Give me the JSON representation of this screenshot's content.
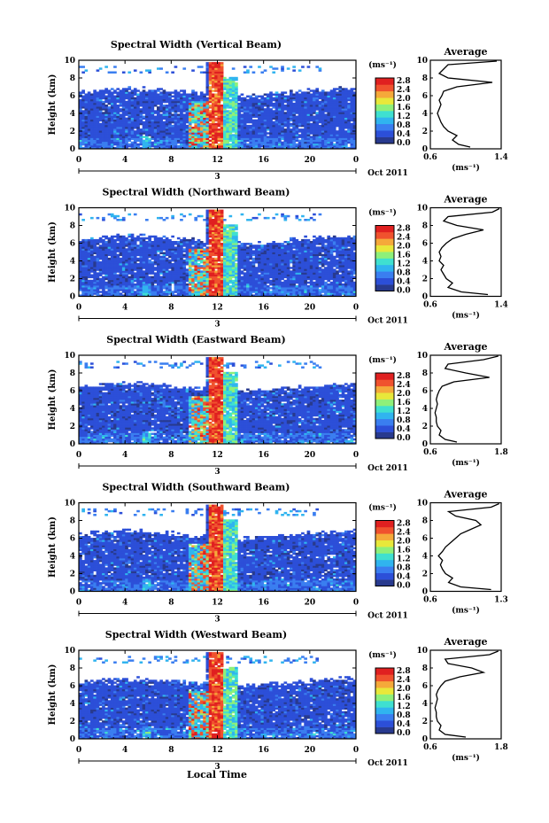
{
  "common": {
    "ylabel": "Height (km)",
    "xlabel": "Local Time",
    "date_label": "Oct 2011",
    "day_marker": "3",
    "unit_label": "(ms⁻¹)",
    "avg_title": "Average",
    "avg_unit": "(ms⁻¹)",
    "x_ticks": [
      "0",
      "4",
      "8",
      "12",
      "16",
      "20",
      "0"
    ],
    "y_ticks": [
      "0",
      "2",
      "4",
      "6",
      "8",
      "10"
    ],
    "colorbar_ticks": [
      "0.0",
      "0.4",
      "0.8",
      "1.2",
      "1.6",
      "2.0",
      "2.4",
      "2.8"
    ],
    "colorbar_colors": [
      "#283a8e",
      "#2c4fd8",
      "#3a7ef0",
      "#30b4ef",
      "#3fe0d0",
      "#8ef07a",
      "#e8e83a",
      "#f5a93a",
      "#f0522e",
      "#e02020"
    ]
  },
  "chart_data": [
    {
      "type": "heatmap",
      "title": "Spectral Width (Vertical Beam)",
      "x_range": [
        0,
        24
      ],
      "y_range": [
        0,
        10
      ],
      "color_range": [
        0.0,
        3.0
      ],
      "avg_ticks": [
        "0.6",
        "1.4"
      ],
      "avg_range": [
        0.6,
        1.4
      ],
      "avg_profile": [
        [
          1.05,
          0.2
        ],
        [
          0.92,
          0.5
        ],
        [
          0.85,
          1.0
        ],
        [
          0.9,
          1.5
        ],
        [
          0.8,
          2.0
        ],
        [
          0.75,
          2.5
        ],
        [
          0.72,
          3.0
        ],
        [
          0.7,
          3.5
        ],
        [
          0.68,
          4.0
        ],
        [
          0.7,
          4.5
        ],
        [
          0.72,
          5.0
        ],
        [
          0.7,
          5.5
        ],
        [
          0.73,
          6.0
        ],
        [
          0.75,
          6.5
        ],
        [
          0.9,
          7.0
        ],
        [
          1.3,
          7.5
        ],
        [
          0.8,
          8.0
        ],
        [
          0.7,
          8.5
        ],
        [
          0.75,
          9.0
        ],
        [
          0.8,
          9.5
        ],
        [
          1.35,
          9.9
        ]
      ]
    },
    {
      "type": "heatmap",
      "title": "Spectral Width (Northward Beam)",
      "x_range": [
        0,
        24
      ],
      "y_range": [
        0,
        10
      ],
      "color_range": [
        0.0,
        3.0
      ],
      "avg_ticks": [
        "0.6",
        "1.4"
      ],
      "avg_range": [
        0.6,
        1.4
      ],
      "avg_profile": [
        [
          1.25,
          0.2
        ],
        [
          0.95,
          0.5
        ],
        [
          0.8,
          1.0
        ],
        [
          0.85,
          1.5
        ],
        [
          0.78,
          2.0
        ],
        [
          0.75,
          2.5
        ],
        [
          0.72,
          3.0
        ],
        [
          0.75,
          3.5
        ],
        [
          0.7,
          4.0
        ],
        [
          0.72,
          4.5
        ],
        [
          0.7,
          5.0
        ],
        [
          0.73,
          5.5
        ],
        [
          0.78,
          6.0
        ],
        [
          0.85,
          6.5
        ],
        [
          1.0,
          7.0
        ],
        [
          1.2,
          7.5
        ],
        [
          0.9,
          8.0
        ],
        [
          0.75,
          8.5
        ],
        [
          0.8,
          9.0
        ],
        [
          1.3,
          9.5
        ],
        [
          1.38,
          9.9
        ]
      ]
    },
    {
      "type": "heatmap",
      "title": "Spectral Width (Eastward Beam)",
      "x_range": [
        0,
        24
      ],
      "y_range": [
        0,
        10
      ],
      "color_range": [
        0.0,
        3.0
      ],
      "avg_ticks": [
        "0.6",
        "1.8"
      ],
      "avg_range": [
        0.6,
        1.8
      ],
      "avg_profile": [
        [
          1.05,
          0.2
        ],
        [
          0.85,
          0.5
        ],
        [
          0.75,
          1.0
        ],
        [
          0.78,
          1.5
        ],
        [
          0.72,
          2.0
        ],
        [
          0.7,
          2.5
        ],
        [
          0.7,
          3.0
        ],
        [
          0.68,
          3.5
        ],
        [
          0.7,
          4.0
        ],
        [
          0.72,
          4.5
        ],
        [
          0.7,
          5.0
        ],
        [
          0.72,
          5.5
        ],
        [
          0.75,
          6.0
        ],
        [
          0.8,
          6.5
        ],
        [
          1.0,
          7.0
        ],
        [
          1.6,
          7.5
        ],
        [
          1.2,
          8.0
        ],
        [
          0.85,
          8.5
        ],
        [
          0.9,
          9.0
        ],
        [
          1.5,
          9.5
        ],
        [
          1.75,
          9.9
        ]
      ]
    },
    {
      "type": "heatmap",
      "title": "Spectral Width (Southward Beam)",
      "x_range": [
        0,
        24
      ],
      "y_range": [
        0,
        10
      ],
      "color_range": [
        0.0,
        3.0
      ],
      "avg_ticks": [
        "0.6",
        "1.3"
      ],
      "avg_range": [
        0.6,
        1.3
      ],
      "avg_profile": [
        [
          1.2,
          0.2
        ],
        [
          0.9,
          0.5
        ],
        [
          0.78,
          1.0
        ],
        [
          0.82,
          1.5
        ],
        [
          0.75,
          2.0
        ],
        [
          0.72,
          2.5
        ],
        [
          0.7,
          3.0
        ],
        [
          0.72,
          3.5
        ],
        [
          0.68,
          4.0
        ],
        [
          0.72,
          4.5
        ],
        [
          0.75,
          5.0
        ],
        [
          0.8,
          5.5
        ],
        [
          0.85,
          6.0
        ],
        [
          0.9,
          6.5
        ],
        [
          1.0,
          7.0
        ],
        [
          1.1,
          7.5
        ],
        [
          1.05,
          8.0
        ],
        [
          0.85,
          8.5
        ],
        [
          0.78,
          9.0
        ],
        [
          1.2,
          9.5
        ],
        [
          1.28,
          9.9
        ]
      ]
    },
    {
      "type": "heatmap",
      "title": "Spectral Width (Westward Beam)",
      "x_range": [
        0,
        24
      ],
      "y_range": [
        0,
        10
      ],
      "color_range": [
        0.0,
        3.0
      ],
      "avg_ticks": [
        "0.6",
        "1.8"
      ],
      "avg_range": [
        0.6,
        1.8
      ],
      "avg_profile": [
        [
          1.2,
          0.2
        ],
        [
          0.85,
          0.5
        ],
        [
          0.75,
          1.0
        ],
        [
          0.78,
          1.5
        ],
        [
          0.72,
          2.0
        ],
        [
          0.7,
          2.5
        ],
        [
          0.7,
          3.0
        ],
        [
          0.68,
          3.5
        ],
        [
          0.7,
          4.0
        ],
        [
          0.72,
          4.5
        ],
        [
          0.7,
          5.0
        ],
        [
          0.73,
          5.5
        ],
        [
          0.78,
          6.0
        ],
        [
          0.85,
          6.5
        ],
        [
          1.1,
          7.0
        ],
        [
          1.5,
          7.5
        ],
        [
          1.3,
          8.0
        ],
        [
          0.9,
          8.5
        ],
        [
          0.85,
          9.0
        ],
        [
          1.6,
          9.5
        ],
        [
          1.75,
          9.9
        ]
      ]
    }
  ]
}
